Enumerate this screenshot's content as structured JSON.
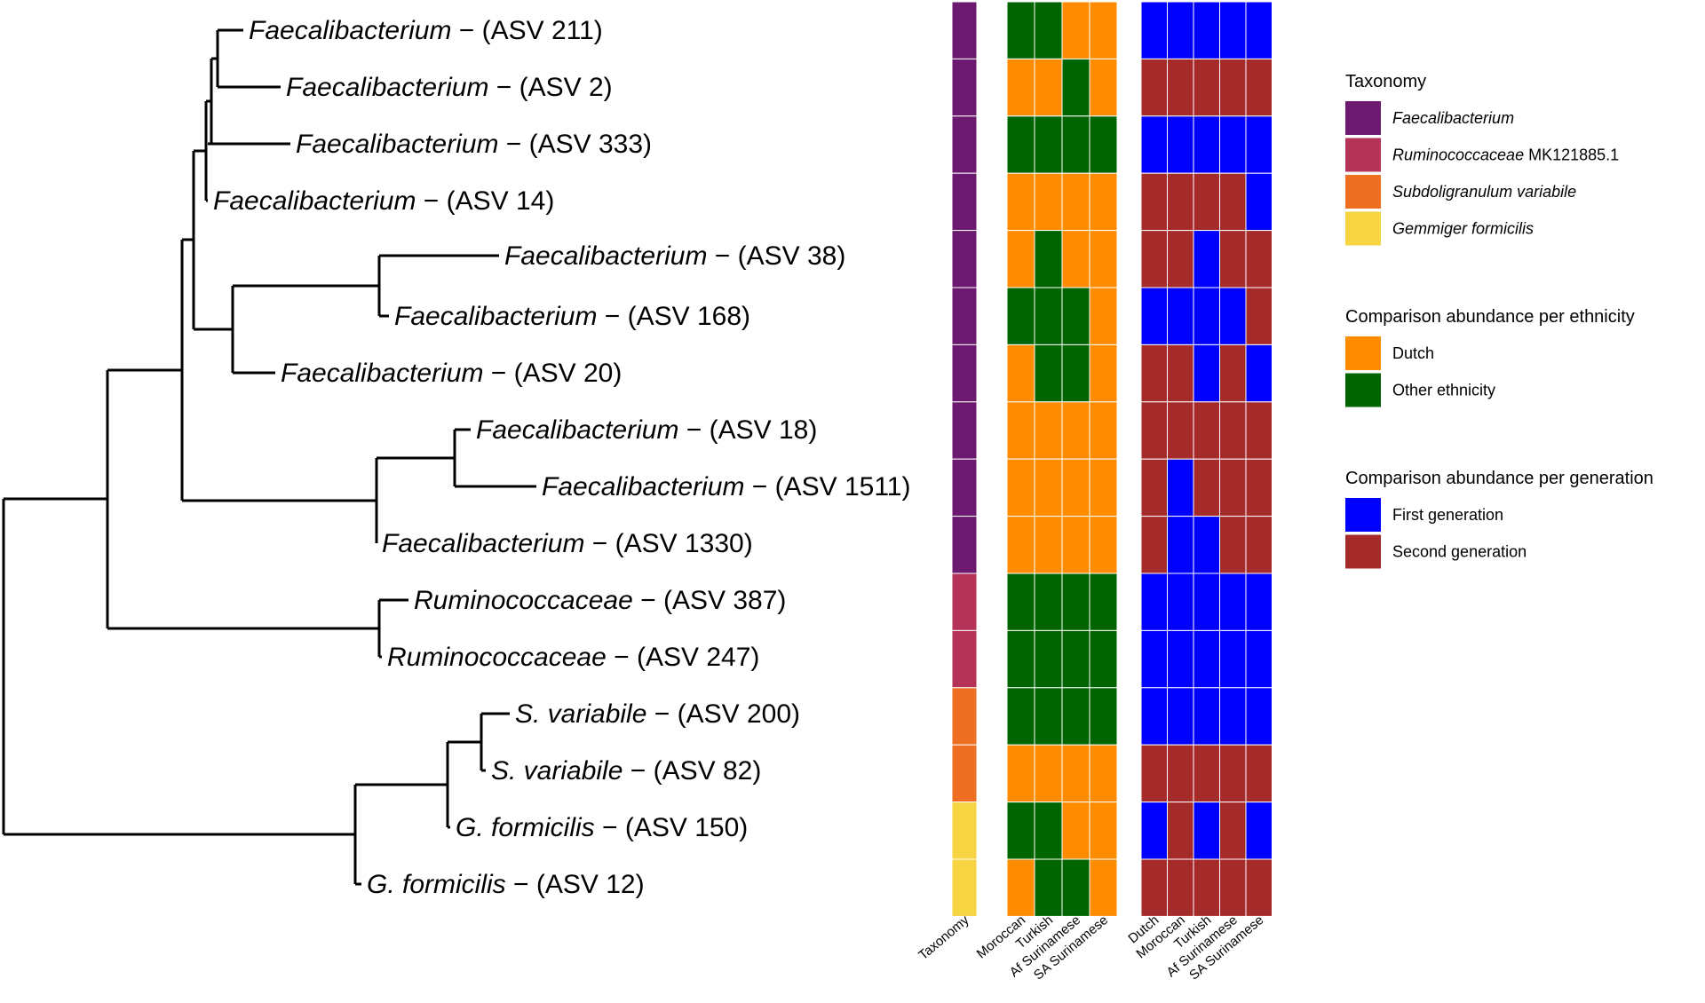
{
  "tree": {
    "leaves": [
      {
        "genus": "Faecalibacterium",
        "asv": "− (ASV 211)",
        "taxonomy": "Faecalibacterium",
        "ethnicity": [
          "Other ethnicity",
          "Other ethnicity",
          "Dutch",
          "Dutch"
        ],
        "generation": [
          "First generation",
          "First generation",
          "First generation",
          "First generation",
          "First generation"
        ]
      },
      {
        "genus": "Faecalibacterium",
        "asv": "− (ASV 2)",
        "taxonomy": "Faecalibacterium",
        "ethnicity": [
          "Dutch",
          "Dutch",
          "Other ethnicity",
          "Dutch"
        ],
        "generation": [
          "Second generation",
          "Second generation",
          "Second generation",
          "Second generation",
          "Second generation"
        ]
      },
      {
        "genus": "Faecalibacterium",
        "asv": "− (ASV 333)",
        "taxonomy": "Faecalibacterium",
        "ethnicity": [
          "Other ethnicity",
          "Other ethnicity",
          "Other ethnicity",
          "Other ethnicity"
        ],
        "generation": [
          "First generation",
          "First generation",
          "First generation",
          "First generation",
          "First generation"
        ]
      },
      {
        "genus": "Faecalibacterium",
        "asv": "− (ASV 14)",
        "taxonomy": "Faecalibacterium",
        "ethnicity": [
          "Dutch",
          "Dutch",
          "Dutch",
          "Dutch"
        ],
        "generation": [
          "Second generation",
          "Second generation",
          "Second generation",
          "Second generation",
          "First generation"
        ]
      },
      {
        "genus": "Faecalibacterium",
        "asv": "− (ASV 38)",
        "taxonomy": "Faecalibacterium",
        "ethnicity": [
          "Dutch",
          "Other ethnicity",
          "Dutch",
          "Dutch"
        ],
        "generation": [
          "Second generation",
          "Second generation",
          "First generation",
          "Second generation",
          "Second generation"
        ]
      },
      {
        "genus": "Faecalibacterium",
        "asv": "− (ASV 168)",
        "taxonomy": "Faecalibacterium",
        "ethnicity": [
          "Other ethnicity",
          "Other ethnicity",
          "Other ethnicity",
          "Dutch"
        ],
        "generation": [
          "First generation",
          "First generation",
          "First generation",
          "First generation",
          "Second generation"
        ]
      },
      {
        "genus": "Faecalibacterium",
        "asv": "− (ASV 20)",
        "taxonomy": "Faecalibacterium",
        "ethnicity": [
          "Dutch",
          "Other ethnicity",
          "Other ethnicity",
          "Dutch"
        ],
        "generation": [
          "Second generation",
          "Second generation",
          "First generation",
          "Second generation",
          "First generation"
        ]
      },
      {
        "genus": "Faecalibacterium",
        "asv": "− (ASV 18)",
        "taxonomy": "Faecalibacterium",
        "ethnicity": [
          "Dutch",
          "Dutch",
          "Dutch",
          "Dutch"
        ],
        "generation": [
          "Second generation",
          "Second generation",
          "Second generation",
          "Second generation",
          "Second generation"
        ]
      },
      {
        "genus": "Faecalibacterium",
        "asv": "− (ASV 1511)",
        "taxonomy": "Faecalibacterium",
        "ethnicity": [
          "Dutch",
          "Dutch",
          "Dutch",
          "Dutch"
        ],
        "generation": [
          "Second generation",
          "First generation",
          "Second generation",
          "Second generation",
          "Second generation"
        ]
      },
      {
        "genus": "Faecalibacterium",
        "asv": "− (ASV 1330)",
        "taxonomy": "Faecalibacterium",
        "ethnicity": [
          "Dutch",
          "Dutch",
          "Dutch",
          "Dutch"
        ],
        "generation": [
          "Second generation",
          "First generation",
          "First generation",
          "Second generation",
          "Second generation"
        ]
      },
      {
        "genus": "Ruminococcaceae",
        "asv": "− (ASV 387)",
        "taxonomy": "Ruminococcaceae MK121885.1",
        "ethnicity": [
          "Other ethnicity",
          "Other ethnicity",
          "Other ethnicity",
          "Other ethnicity"
        ],
        "generation": [
          "First generation",
          "First generation",
          "First generation",
          "First generation",
          "First generation"
        ]
      },
      {
        "genus": "Ruminococcaceae",
        "asv": "− (ASV 247)",
        "taxonomy": "Ruminococcaceae MK121885.1",
        "ethnicity": [
          "Other ethnicity",
          "Other ethnicity",
          "Other ethnicity",
          "Other ethnicity"
        ],
        "generation": [
          "First generation",
          "First generation",
          "First generation",
          "First generation",
          "First generation"
        ]
      },
      {
        "genus": "S. variabile",
        "asv": "− (ASV 200)",
        "taxonomy": "Subdoligranulum variabile",
        "ethnicity": [
          "Other ethnicity",
          "Other ethnicity",
          "Other ethnicity",
          "Other ethnicity"
        ],
        "generation": [
          "First generation",
          "First generation",
          "First generation",
          "First generation",
          "First generation"
        ]
      },
      {
        "genus": "S. variabile",
        "asv": "− (ASV 82)",
        "taxonomy": "Subdoligranulum variabile",
        "ethnicity": [
          "Dutch",
          "Dutch",
          "Dutch",
          "Dutch"
        ],
        "generation": [
          "Second generation",
          "Second generation",
          "Second generation",
          "Second generation",
          "Second generation"
        ]
      },
      {
        "genus": "G. formicilis",
        "asv": "− (ASV 150)",
        "taxonomy": "Gemmiger formicilis",
        "ethnicity": [
          "Other ethnicity",
          "Other ethnicity",
          "Dutch",
          "Dutch"
        ],
        "generation": [
          "First generation",
          "Second generation",
          "First generation",
          "Second generation",
          "First generation"
        ]
      },
      {
        "genus": "G. formicilis",
        "asv": "− (ASV 12)",
        "taxonomy": "Gemmiger formicilis",
        "ethnicity": [
          "Dutch",
          "Other ethnicity",
          "Other ethnicity",
          "Dutch"
        ],
        "generation": [
          "Second generation",
          "Second generation",
          "Second generation",
          "Second generation",
          "Second generation"
        ]
      }
    ]
  },
  "columns": {
    "taxonomy": [
      "Taxonomy"
    ],
    "ethnicity": [
      "Moroccan",
      "Turkish",
      "Af Surinamese",
      "SA Surinamese"
    ],
    "generation": [
      "Dutch",
      "Moroccan",
      "Turkish",
      "Af Surinamese",
      "SA Surinamese"
    ]
  },
  "legend": {
    "taxonomy": {
      "title": "Taxonomy",
      "items": [
        {
          "italic": "Faecalibacterium",
          "plain": "",
          "color": "#6b1a6f"
        },
        {
          "italic": "Ruminococcaceae",
          "plain": " MK121885.1",
          "color": "#b53258"
        },
        {
          "italic": "Subdoligranulum variabile",
          "plain": "",
          "color": "#ee6e22"
        },
        {
          "italic": "Gemmiger formicilis",
          "plain": "",
          "color": "#f6d442"
        }
      ]
    },
    "ethnicity": {
      "title": "Comparison abundance per ethnicity",
      "items": [
        {
          "label": "Dutch",
          "color": "#ff8c00"
        },
        {
          "label": "Other ethnicity",
          "color": "#006400"
        }
      ]
    },
    "generation": {
      "title": "Comparison abundance per generation",
      "items": [
        {
          "label": "First generation",
          "color": "#0000ff"
        },
        {
          "label": "Second generation",
          "color": "#a52a2a"
        }
      ]
    }
  },
  "colors": {
    "taxonomy": {
      "Faecalibacterium": "#6b1a6f",
      "Ruminococcaceae MK121885.1": "#b53258",
      "Subdoligranulum variabile": "#ee6e22",
      "Gemmiger formicilis": "#f6d442"
    },
    "ethnicity": {
      "Dutch": "#ff8c00",
      "Other ethnicity": "#006400"
    },
    "generation": {
      "First generation": "#0000ff",
      "Second generation": "#a52a2a"
    },
    "branch": "#000000"
  }
}
